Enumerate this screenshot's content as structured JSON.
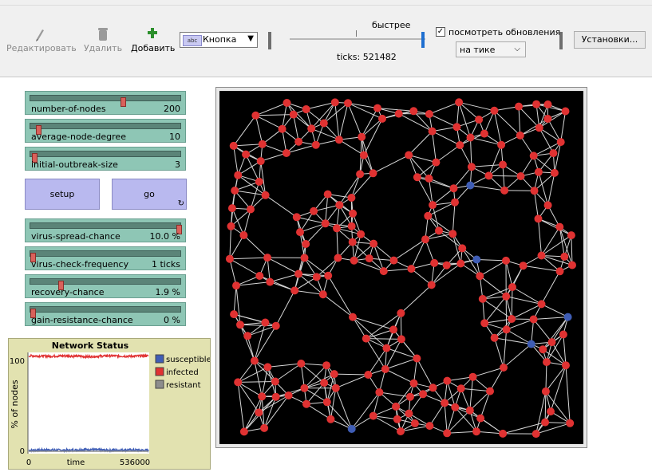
{
  "toolbar": {
    "edit_label": "Редактировать",
    "delete_label": "Удалить",
    "add_label": "Добавить",
    "widget_type": "Кнопка",
    "widget_type_icon_text": "abc",
    "speed_label": "быстрее",
    "ticks_label": "ticks: 521482",
    "view_updates_label": "посмотреть обновления",
    "view_updates_checked": true,
    "update_mode": "на тике",
    "settings_label": "Установки..."
  },
  "sliders": [
    {
      "name": "number-of-nodes",
      "value": "200",
      "fraction": 0.62
    },
    {
      "name": "average-node-degree",
      "value": "10",
      "fraction": 0.04
    },
    {
      "name": "initial-outbreak-size",
      "value": "3",
      "fraction": 0.01
    },
    {
      "name": "virus-spread-chance",
      "value": "10.0 %",
      "fraction": 1.0
    },
    {
      "name": "virus-check-frequency",
      "value": "1 ticks",
      "fraction": 0.0
    },
    {
      "name": "recovery-chance",
      "value": "1.9 %",
      "fraction": 0.19
    },
    {
      "name": "gain-resistance-chance",
      "value": "0 %",
      "fraction": 0.0
    }
  ],
  "buttons": {
    "setup_label": "setup",
    "go_label": "go",
    "forever_icon": "↻"
  },
  "colors": {
    "susceptible": "#3f5db5",
    "infected": "#e03232",
    "resistant": "#8d8d8d",
    "link": "#d8d8d8",
    "world_bg": "#000000"
  },
  "chart_data": {
    "type": "line",
    "title": "Network Status",
    "xlabel": "time",
    "ylabel": "% of nodes",
    "xlim": [
      0,
      536000
    ],
    "ylim": [
      0,
      100
    ],
    "x_ticks": [
      "0",
      "536000"
    ],
    "y_ticks": [
      "100",
      "0"
    ],
    "legend": "right",
    "series": [
      {
        "name": "susceptible",
        "color": "#3f5db5",
        "values_approx": [
          1,
          1.5,
          1,
          2,
          1,
          1.5,
          1
        ]
      },
      {
        "name": "infected",
        "color": "#e03232",
        "values_approx": [
          99,
          98.5,
          99,
          98,
          99,
          98.5,
          99
        ]
      },
      {
        "name": "resistant",
        "color": "#8d8d8d",
        "values_approx": [
          0,
          0,
          0,
          0,
          0,
          0,
          0
        ]
      }
    ]
  }
}
